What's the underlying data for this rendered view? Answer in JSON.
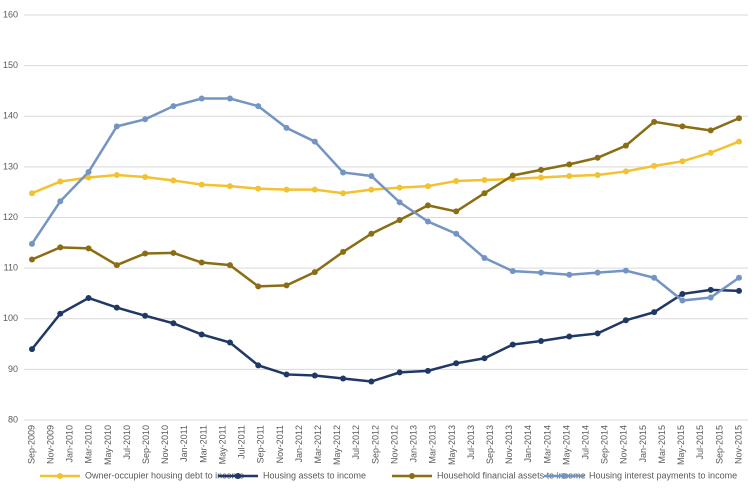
{
  "chart_data": {
    "type": "line",
    "xticks": [
      "Sep-2009",
      "Nov-2009",
      "Jan-2010",
      "Mar-2010",
      "May-2010",
      "Jul-2010",
      "Sep-2010",
      "Nov-2010",
      "Jan-2011",
      "Mar-2011",
      "May-2011",
      "Jul-2011",
      "Sep-2011",
      "Nov-2011",
      "Jan-2012",
      "Mar-2012",
      "May-2012",
      "Jul-2012",
      "Sep-2012",
      "Nov-2012",
      "Jan-2013",
      "Mar-2013",
      "May-2013",
      "Jul-2013",
      "Sep-2013",
      "Nov-2013",
      "Jan-2014",
      "Mar-2014",
      "May-2014",
      "Jul-2014",
      "Sep-2014",
      "Nov-2014",
      "Jan-2015",
      "Mar-2015",
      "May-2015",
      "Jul-2015",
      "Sep-2015",
      "Nov-2015"
    ],
    "ylim": [
      80,
      160
    ],
    "yticks": [
      80,
      90,
      100,
      110,
      120,
      130,
      140,
      150,
      160
    ],
    "grid": true,
    "legend": "bottom",
    "series": [
      {
        "name": "Owner-occupier housing debt to income",
        "color": "#f2c232",
        "values": [
          124.8,
          127.1,
          127.9,
          128.4,
          128.0,
          127.3,
          126.5,
          126.2,
          125.7,
          125.5,
          125.5,
          124.8,
          125.5,
          125.9,
          126.2,
          127.2,
          127.4,
          127.6,
          127.9,
          128.2,
          128.4,
          129.1,
          130.2,
          131.1,
          132.8,
          135.0
        ]
      },
      {
        "name": "Housing assets to income",
        "color": "#1f3864",
        "values": [
          94.0,
          101.0,
          104.1,
          102.2,
          100.6,
          99.1,
          96.9,
          95.3,
          90.8,
          89.0,
          88.8,
          88.2,
          87.6,
          89.4,
          89.7,
          91.2,
          92.2,
          94.9,
          95.6,
          96.5,
          97.1,
          99.7,
          101.3,
          104.9,
          105.7,
          105.5
        ]
      },
      {
        "name": "Household financial assets to income",
        "color": "#8b6d14",
        "values": [
          111.7,
          114.1,
          113.9,
          110.6,
          112.9,
          113.0,
          111.1,
          110.6,
          106.4,
          106.6,
          109.2,
          113.2,
          116.8,
          119.5,
          122.4,
          121.2,
          124.8,
          128.3,
          129.4,
          130.5,
          131.8,
          134.2,
          138.9,
          138.0,
          137.2,
          139.6
        ]
      },
      {
        "name": "Housing interest payments to income",
        "color": "#7495c4",
        "values": [
          114.8,
          123.2,
          129.0,
          138.0,
          139.4,
          142.0,
          143.5,
          143.5,
          142.0,
          137.7,
          135.0,
          128.9,
          128.2,
          123.0,
          119.2,
          116.8,
          112.0,
          109.4,
          109.1,
          108.7,
          109.1,
          109.5,
          108.1,
          103.6,
          104.2,
          108.1
        ]
      }
    ]
  }
}
